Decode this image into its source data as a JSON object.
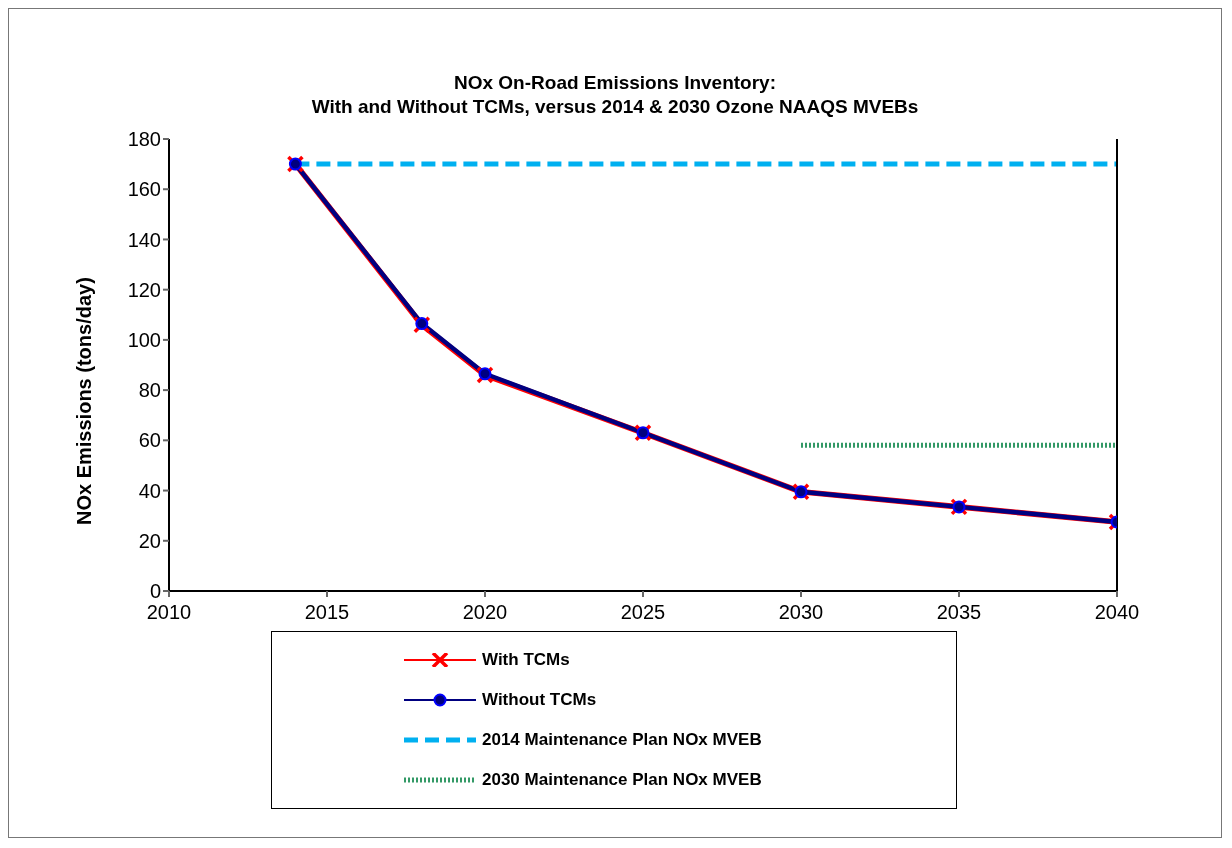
{
  "chart_data": {
    "type": "line",
    "title": "NOx On-Road Emissions Inventory:\nWith and Without TCMs, versus 2014 & 2030 Ozone NAAQS MVEBs",
    "ylabel": "NOx Emissions (tons/day)",
    "x": [
      2014,
      2018,
      2020,
      2025,
      2030,
      2035,
      2040
    ],
    "series": [
      {
        "name": "With TCMs",
        "color": "#ff0000",
        "marker": "cross",
        "values": [
          170,
          106,
          86,
          63,
          39.5,
          33.5,
          27.5
        ]
      },
      {
        "name": "Without TCMs",
        "color": "#000080",
        "marker": "circle",
        "values": [
          170,
          106.5,
          86.5,
          63,
          39.5,
          33.5,
          27.5
        ]
      },
      {
        "name": "2014 Maintenance Plan NOx MVEB",
        "color": "#00b0f0",
        "marker": "none",
        "line_style": "dashed",
        "x": [
          2014,
          2040
        ],
        "values": [
          170,
          170
        ]
      },
      {
        "name": "2030 Maintenance Plan NOx MVEB",
        "color": "#339966",
        "marker": "none",
        "line_style": "dotted",
        "x": [
          2030,
          2040
        ],
        "values": [
          58,
          58
        ]
      }
    ],
    "xlim": [
      2010,
      2040
    ],
    "xticks": [
      2010,
      2015,
      2020,
      2025,
      2030,
      2035,
      2040
    ],
    "ylim": [
      0,
      180
    ],
    "yticks": [
      0,
      20,
      40,
      60,
      80,
      100,
      120,
      140,
      160,
      180
    ],
    "grid": false,
    "legend": "bottom"
  }
}
